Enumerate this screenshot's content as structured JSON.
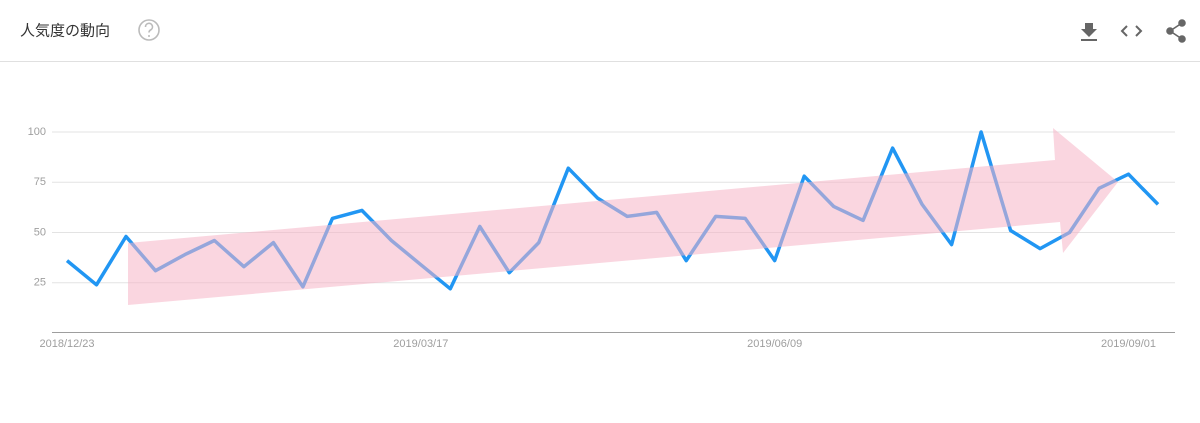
{
  "chart_data": {
    "type": "line",
    "title": "人気度の動向",
    "categories": [
      "2018/12/23",
      null,
      null,
      null,
      null,
      null,
      null,
      null,
      null,
      null,
      null,
      null,
      "2019/03/17",
      null,
      null,
      null,
      null,
      null,
      null,
      null,
      null,
      null,
      null,
      null,
      "2019/06/09",
      null,
      null,
      null,
      null,
      null,
      null,
      null,
      null,
      null,
      null,
      null,
      "2019/09/01",
      null
    ],
    "values": [
      36,
      24,
      48,
      31,
      39,
      46,
      33,
      45,
      23,
      57,
      61,
      46,
      34,
      22,
      53,
      30,
      45,
      82,
      67,
      58,
      60,
      36,
      58,
      57,
      36,
      78,
      63,
      56,
      92,
      64,
      44,
      100,
      51,
      42,
      50,
      72,
      79,
      64
    ],
    "color": "#2196f3",
    "ylim": [
      0,
      100
    ],
    "yticks": [
      25,
      50,
      75,
      100
    ],
    "grid": true
  }
}
